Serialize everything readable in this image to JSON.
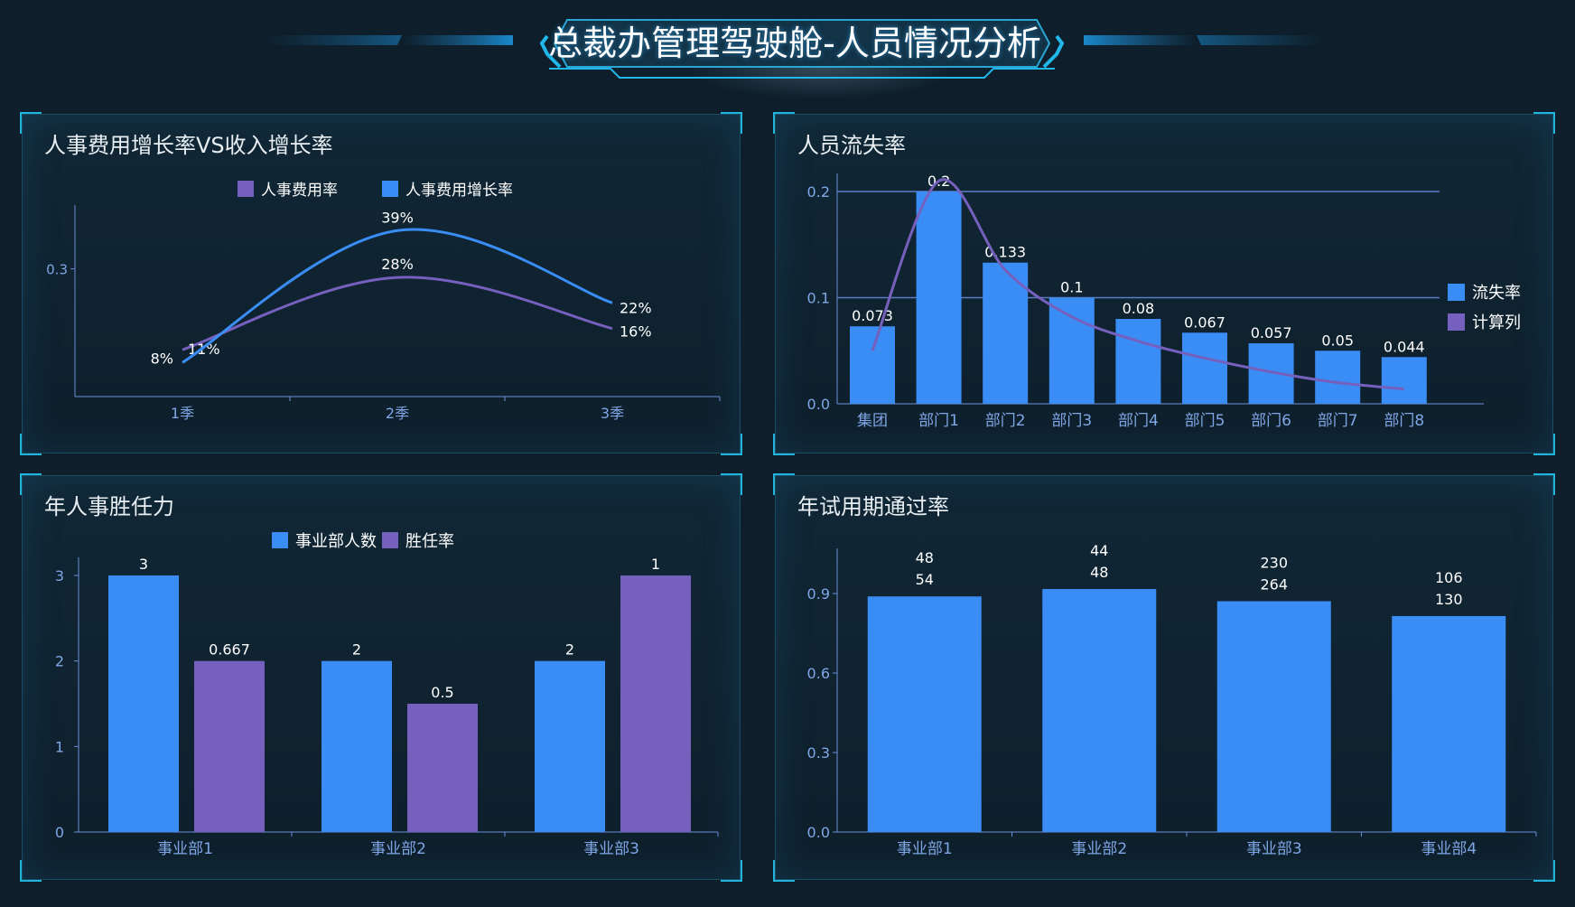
{
  "page_title": "总裁办管理驾驶舱-人员情况分析",
  "colors": {
    "blue": "#3a8df5",
    "purple": "#7660bd",
    "axis": "#6b8fd6",
    "tick": "#7fa6e6",
    "grid": "#5b7fc6"
  },
  "chart_data": [
    {
      "type": "line",
      "title": "人事费用增长率VS收入增长率",
      "categories": [
        "1季",
        "2季",
        "3季"
      ],
      "series": [
        {
          "name": "人事费用率",
          "values": [
            0.11,
            0.28,
            0.16
          ],
          "labels": [
            "11%",
            "28%",
            "16%"
          ],
          "color": "#7660bd"
        },
        {
          "name": "人事费用增长率",
          "values": [
            0.08,
            0.39,
            0.22
          ],
          "labels": [
            "8%",
            "39%",
            "22%"
          ],
          "color": "#3a8df5"
        }
      ],
      "ylim": [
        0,
        0.45
      ],
      "yticks": [
        "0.3"
      ],
      "grid": false,
      "legend": "top-center"
    },
    {
      "type": "bar",
      "title": "人员流失率",
      "categories": [
        "集团",
        "部门1",
        "部门2",
        "部门3",
        "部门4",
        "部门5",
        "部门6",
        "部门7",
        "部门8"
      ],
      "series": [
        {
          "name": "流失率",
          "type": "bar",
          "values": [
            0.073,
            0.2,
            0.133,
            0.1,
            0.08,
            0.067,
            0.057,
            0.05,
            0.044
          ],
          "labels": [
            "0.073",
            "0.2",
            "0.133",
            "0.1",
            "0.08",
            "0.067",
            "0.057",
            "0.05",
            "0.044"
          ],
          "color": "#3a8df5"
        },
        {
          "name": "计算列",
          "type": "line",
          "values": [
            0.05,
            0.21,
            0.126,
            0.082,
            0.059,
            0.043,
            0.03,
            0.02,
            0.014
          ],
          "color": "#7660bd"
        }
      ],
      "ylim": [
        0,
        0.22
      ],
      "yticks": [
        "0.0",
        "0.1",
        "0.2"
      ],
      "grid": true,
      "legend": "right"
    },
    {
      "type": "bar",
      "title": "年人事胜任力",
      "categories": [
        "事业部1",
        "事业部2",
        "事业部3"
      ],
      "series": [
        {
          "name": "事业部人数",
          "values": [
            3,
            2,
            2
          ],
          "labels": [
            "3",
            "2",
            "2"
          ],
          "color": "#3a8df5"
        },
        {
          "name": "胜任率",
          "values": [
            2,
            1.5,
            3
          ],
          "labels": [
            "0.667",
            "0.5",
            "1"
          ],
          "color": "#7660bd"
        }
      ],
      "ylim": [
        0,
        3.2
      ],
      "yticks": [
        "0",
        "1",
        "2",
        "3"
      ],
      "grid": false,
      "legend": "top-center"
    },
    {
      "type": "bar",
      "title": "年试用期通过率",
      "categories": [
        "事业部1",
        "事业部2",
        "事业部3",
        "事业部4"
      ],
      "series": [
        {
          "name": "",
          "values": [
            0.889,
            0.917,
            0.871,
            0.815
          ],
          "labels_top": [
            "48",
            "44",
            "230",
            "106"
          ],
          "labels_bottom": [
            "54",
            "48",
            "264",
            "130"
          ],
          "color": "#3a8df5"
        }
      ],
      "ylim": [
        0,
        1.08
      ],
      "yticks": [
        "0.0",
        "0.3",
        "0.6",
        "0.9"
      ],
      "grid": false,
      "legend": "none"
    }
  ]
}
